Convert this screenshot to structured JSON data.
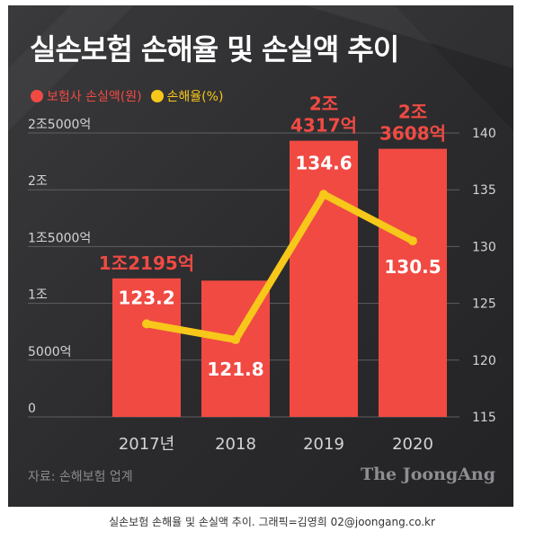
{
  "title": "실손보험 손해율 및 손실액 추이",
  "legend": [
    {
      "label": "보험사 손실액(원)",
      "color": "#f04a43"
    },
    {
      "label": "손해율(%)",
      "color": "#f7c71a"
    }
  ],
  "source": "자료: 손해보험 업계",
  "logo": "The JoongAng",
  "caption": "실손보험 손해율 및 손실액 추이. 그래픽=김영희 02@joongang.co.kr",
  "chart_data": {
    "type": "bar+line",
    "categories": [
      "2017년",
      "2018",
      "2019",
      "2020"
    ],
    "series": [
      {
        "name": "보험사 손실액(원)",
        "type": "bar",
        "axis": "left",
        "color": "#f04a43",
        "unit": "억원",
        "values": [
          12195,
          12000,
          24317,
          23608
        ],
        "labels": [
          "1조2195억",
          "",
          "2조\n4317억",
          "2조\n3608억"
        ]
      },
      {
        "name": "손해율(%)",
        "type": "line",
        "axis": "right",
        "color": "#f7c71a",
        "values": [
          123.2,
          121.8,
          134.6,
          130.5
        ],
        "labels": [
          "123.2",
          "121.8",
          "134.6",
          "130.5"
        ]
      }
    ],
    "y_left": {
      "min": 0,
      "max": 25000,
      "ticks": [
        0,
        5000,
        10000,
        15000,
        20000,
        25000
      ],
      "tick_labels": [
        "0",
        "5000억",
        "1조",
        "1조5000억",
        "2조",
        "2조5000억"
      ]
    },
    "y_right": {
      "min": 115,
      "max": 140,
      "ticks": [
        115,
        120,
        125,
        130,
        135,
        140
      ],
      "tick_labels": [
        "115",
        "120",
        "125",
        "130",
        "135",
        "140"
      ]
    }
  }
}
